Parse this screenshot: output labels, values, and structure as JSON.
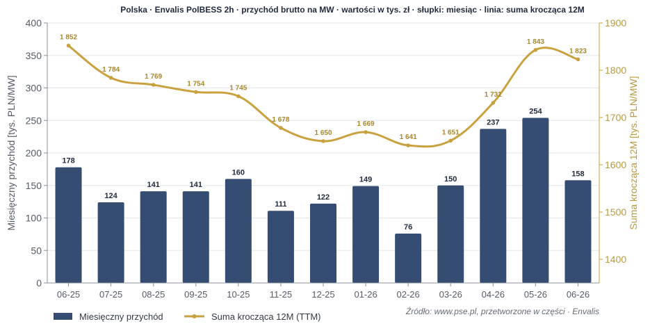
{
  "chart_data": {
    "type": "bar+line",
    "title": "Polska · Envalis PolBESS 2h · przychód brutto na MW · wartości w tys. zł · słupki: miesiąc · linia: suma krocząca 12M",
    "categories": [
      "06-25",
      "07-25",
      "08-25",
      "09-25",
      "10-25",
      "11-25",
      "12-25",
      "01-26",
      "02-26",
      "03-26",
      "04-26",
      "05-26",
      "06-26"
    ],
    "series": [
      {
        "name": "Miesięczny przychód",
        "type": "bar",
        "axis": "left",
        "color": "#364d73",
        "values": [
          178,
          124,
          141,
          141,
          160,
          111,
          122,
          149,
          76,
          150,
          237,
          254,
          158
        ],
        "labels": [
          "178",
          "124",
          "141",
          "141",
          "160",
          "111",
          "122",
          "149",
          "76",
          "150",
          "237",
          "254",
          "158"
        ]
      },
      {
        "name": "Suma krocząca 12M (TTM)",
        "type": "line",
        "axis": "right",
        "color": "#c9a13e",
        "values": [
          1852,
          1784,
          1769,
          1754,
          1745,
          1678,
          1650,
          1669,
          1641,
          1651,
          1731,
          1843,
          1823
        ],
        "labels": [
          "1 852",
          "1 784",
          "1 769",
          "1 754",
          "1 745",
          "1 678",
          "1 650",
          "1 669",
          "1 641",
          "1 651",
          "1 731",
          "1 843",
          "1 823"
        ]
      }
    ],
    "ylabel": "Miesięczny przychód [tys. PLN/MW]",
    "ylabel_right": "Suma krocząca 12M [tys. PLN/MW]",
    "ylim": [
      0,
      400
    ],
    "yticks": [
      0,
      50,
      100,
      150,
      200,
      250,
      300,
      350,
      400
    ],
    "ylim_right": [
      1350,
      1900
    ],
    "yticks_right": [
      1400,
      1500,
      1600,
      1700,
      1800,
      1900
    ],
    "grid": true,
    "legend_position": "bottom-left",
    "source": "Źródło: www.pse.pl, przetworzone w części · Envalis"
  }
}
